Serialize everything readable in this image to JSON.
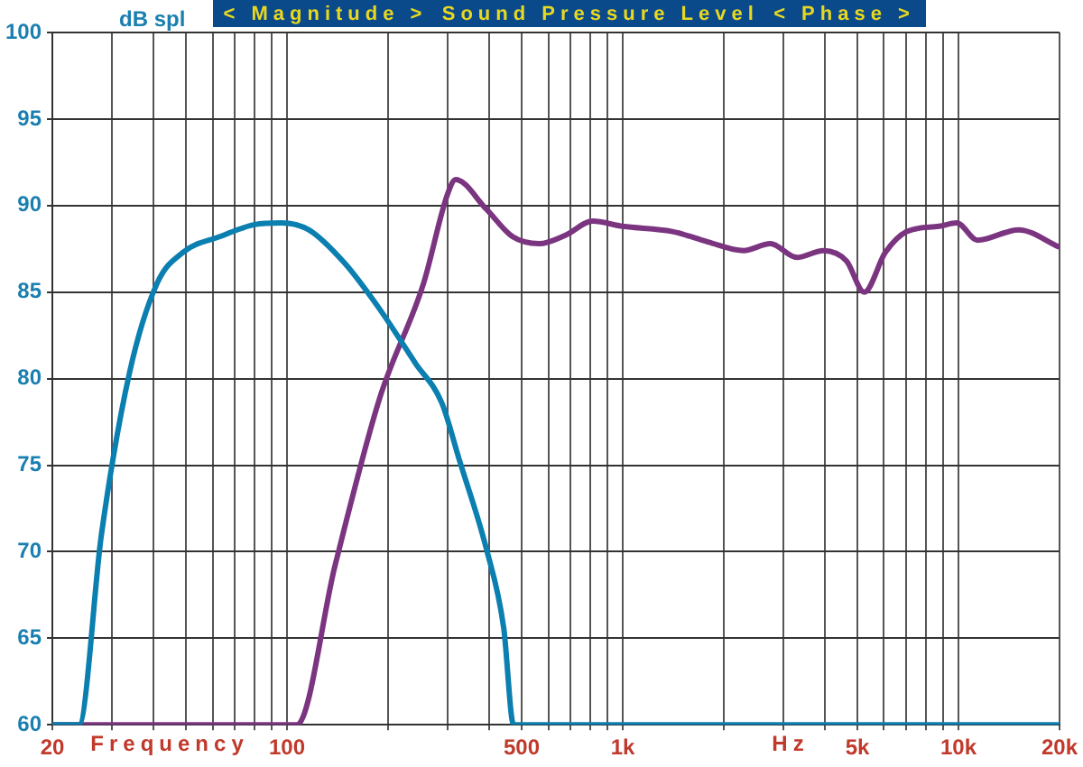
{
  "chart_data": {
    "type": "line",
    "title": "Sound Pressure Level",
    "ylabel": "dB spl",
    "xlabel": "Frequency",
    "annotations": [
      "< Magnitude >",
      "< Phase >",
      "Hz"
    ],
    "log": "x",
    "grid": true,
    "legend": false,
    "marker": "none",
    "line_style": "solid",
    "xlim": [
      20,
      20000
    ],
    "ylim": [
      60,
      100
    ],
    "yticks": [
      60,
      65,
      70,
      75,
      80,
      85,
      90,
      95,
      100
    ],
    "xticks": [
      20,
      {
        "value": 30,
        "label": null
      },
      {
        "value": 40,
        "label": null
      },
      {
        "value": 50,
        "label": null
      },
      {
        "value": 60,
        "label": null
      },
      {
        "value": 70,
        "label": null
      },
      {
        "value": 80,
        "label": null
      },
      {
        "value": 90,
        "label": null
      },
      100,
      {
        "value": 200,
        "label": null
      },
      {
        "value": 300,
        "label": null
      },
      {
        "value": 400,
        "label": null
      },
      500,
      {
        "value": 600,
        "label": null
      },
      {
        "value": 700,
        "label": null
      },
      {
        "value": 800,
        "label": null
      },
      {
        "value": 900,
        "label": null
      },
      {
        "value": 1000,
        "label": "1k"
      },
      {
        "value": 2000,
        "label": null
      },
      {
        "value": 3000,
        "label": null
      },
      {
        "value": 4000,
        "label": null
      },
      {
        "value": 5000,
        "label": "5k"
      },
      {
        "value": 6000,
        "label": null
      },
      {
        "value": 7000,
        "label": null
      },
      {
        "value": 8000,
        "label": null
      },
      {
        "value": 9000,
        "label": null
      },
      {
        "value": 10000,
        "label": "10k"
      },
      {
        "value": 20000,
        "label": "20k"
      }
    ],
    "series": [
      {
        "color": "#0a7fb0",
        "x": [
          20,
          24,
          28,
          34,
          41,
          49,
          63,
          80,
          96,
          116,
          148,
          189,
          241,
          289,
          326,
          392,
          442,
          473,
          1000,
          10000,
          20000
        ],
        "values": [
          60,
          60,
          71,
          80.4,
          85.5,
          87.3,
          88.2,
          88.9,
          89,
          88.6,
          86.7,
          84,
          80.9,
          78.6,
          75.3,
          70.2,
          65.6,
          60,
          60,
          60,
          60
        ]
      },
      {
        "color": "#7b3580",
        "x": [
          20,
          50,
          107,
          139,
          189,
          255,
          300,
          318,
          392,
          470,
          564,
          677,
          813,
          1000,
          1406,
          1793,
          2290,
          2752,
          3300,
          3960,
          4640,
          5240,
          6060,
          7020,
          8750,
          9880,
          11400,
          15100,
          20000
        ],
        "values": [
          60,
          60,
          60,
          69.2,
          78.9,
          85.5,
          90.6,
          91.5,
          89.8,
          88.2,
          87.8,
          88.3,
          89.1,
          88.8,
          88.5,
          87.9,
          87.4,
          87.8,
          87,
          87.4,
          86.8,
          85,
          87.3,
          88.5,
          88.8,
          89,
          88,
          88.6,
          87.6
        ]
      }
    ]
  }
}
